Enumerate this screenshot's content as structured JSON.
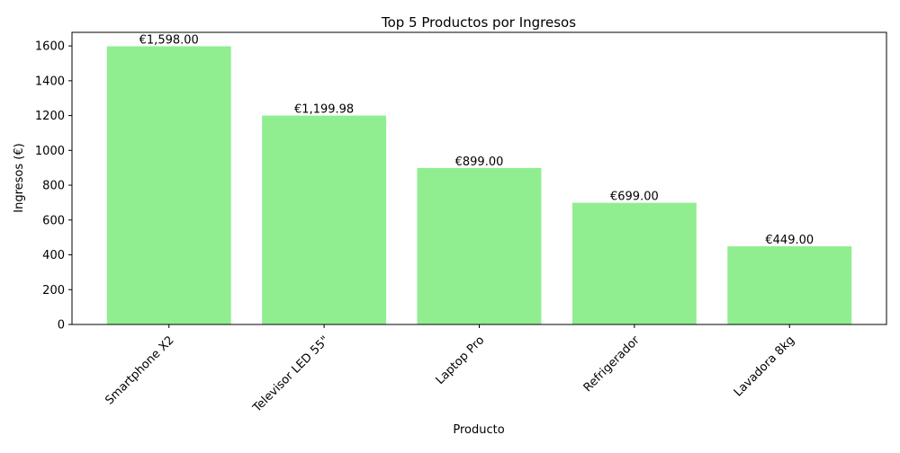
{
  "chart_data": {
    "type": "bar",
    "title": "Top 5 Productos por Ingresos",
    "xlabel": "Producto",
    "ylabel": "Ingresos (€)",
    "categories": [
      "Smartphone X2",
      "Televisor LED 55\"",
      "Laptop Pro",
      "Refrigerador",
      "Lavadora 8kg"
    ],
    "values": [
      1598.0,
      1199.98,
      899.0,
      699.0,
      449.0
    ],
    "value_labels": [
      "€1,598.00",
      "€1,199.98",
      "€899.00",
      "€699.00",
      "€449.00"
    ],
    "ylim": [
      0,
      1678
    ],
    "yticks": [
      0,
      200,
      400,
      600,
      800,
      1000,
      1200,
      1400,
      1600
    ],
    "x_tick_rotation_deg": 45,
    "grid": false,
    "legend": "none",
    "bar_color": "#90ee90"
  }
}
